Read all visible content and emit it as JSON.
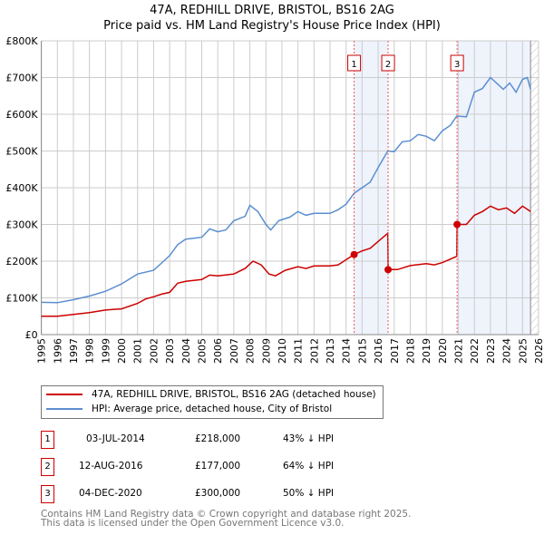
{
  "title": "47A, REDHILL DRIVE, BRISTOL, BS16 2AG",
  "subtitle": "Price paid vs. HM Land Registry's House Price Index (HPI)",
  "legend": {
    "property": "47A, REDHILL DRIVE, BRISTOL, BS16 2AG (detached house)",
    "hpi": "HPI: Average price, detached house, City of Bristol"
  },
  "transactions": [
    {
      "num": "1",
      "date": "03-JUL-2014",
      "price": "£218,000",
      "delta": "43% ↓ HPI"
    },
    {
      "num": "2",
      "date": "12-AUG-2016",
      "price": "£177,000",
      "delta": "64% ↓ HPI"
    },
    {
      "num": "3",
      "date": "04-DEC-2020",
      "price": "£300,000",
      "delta": "50% ↓ HPI"
    }
  ],
  "footer": {
    "line1": "Contains HM Land Registry data © Crown copyright and database right 2025.",
    "line2": "This data is licensed under the Open Government Licence v3.0."
  },
  "colors": {
    "property": "#cc0000",
    "hpi": "#5b8fd0",
    "shade": "#eef3fc"
  },
  "chart_data": {
    "type": "line",
    "xlim": [
      1995,
      2026
    ],
    "ylim": [
      0,
      800000
    ],
    "xticks": [
      "1995",
      "1996",
      "1997",
      "1998",
      "1999",
      "2000",
      "2001",
      "2002",
      "2003",
      "2004",
      "2005",
      "2006",
      "2007",
      "2008",
      "2009",
      "2010",
      "2011",
      "2012",
      "2013",
      "2014",
      "2015",
      "2016",
      "2017",
      "2018",
      "2019",
      "2020",
      "2021",
      "2022",
      "2023",
      "2024",
      "2025",
      "2026"
    ],
    "yticks": [
      {
        "v": 0,
        "label": "£0"
      },
      {
        "v": 100000,
        "label": "£100K"
      },
      {
        "v": 200000,
        "label": "£200K"
      },
      {
        "v": 300000,
        "label": "£300K"
      },
      {
        "v": 400000,
        "label": "£400K"
      },
      {
        "v": 500000,
        "label": "£500K"
      },
      {
        "v": 600000,
        "label": "£600K"
      },
      {
        "v": 700000,
        "label": "£700K"
      },
      {
        "v": 800000,
        "label": "£800K"
      }
    ],
    "shaded_ranges": [
      [
        2014.5,
        2016.62
      ],
      [
        2020.92,
        2025.5
      ]
    ],
    "data_end": 2025.5,
    "markers": [
      {
        "label": "1",
        "x": 2014.5,
        "y": 218000
      },
      {
        "label": "2",
        "x": 2016.62,
        "y": 177000
      },
      {
        "label": "3",
        "x": 2020.92,
        "y": 300000
      }
    ],
    "series": [
      {
        "name": "HPI",
        "points": [
          [
            1995,
            88
          ],
          [
            1996,
            87
          ],
          [
            1997,
            95
          ],
          [
            1998,
            105
          ],
          [
            1999,
            118
          ],
          [
            2000,
            138
          ],
          [
            2001,
            165
          ],
          [
            2002,
            175
          ],
          [
            2002.5,
            195
          ],
          [
            2003,
            215
          ],
          [
            2003.5,
            245
          ],
          [
            2004,
            260
          ],
          [
            2005,
            265
          ],
          [
            2005.5,
            288
          ],
          [
            2006,
            280
          ],
          [
            2006.5,
            285
          ],
          [
            2007,
            310
          ],
          [
            2007.7,
            322
          ],
          [
            2008,
            352
          ],
          [
            2008.5,
            335
          ],
          [
            2009,
            300
          ],
          [
            2009.3,
            285
          ],
          [
            2009.8,
            310
          ],
          [
            2010.5,
            320
          ],
          [
            2011,
            335
          ],
          [
            2011.5,
            325
          ],
          [
            2012,
            330
          ],
          [
            2013,
            330
          ],
          [
            2013.5,
            340
          ],
          [
            2014,
            355
          ],
          [
            2014.5,
            385
          ],
          [
            2015,
            400
          ],
          [
            2015.5,
            415
          ],
          [
            2016,
            455
          ],
          [
            2016.6,
            500
          ],
          [
            2017,
            498
          ],
          [
            2017.5,
            525
          ],
          [
            2018,
            528
          ],
          [
            2018.5,
            545
          ],
          [
            2019,
            540
          ],
          [
            2019.5,
            528
          ],
          [
            2020,
            555
          ],
          [
            2020.5,
            570
          ],
          [
            2020.9,
            595
          ],
          [
            2021.5,
            593
          ],
          [
            2022,
            660
          ],
          [
            2022.5,
            670
          ],
          [
            2023,
            700
          ],
          [
            2023.5,
            680
          ],
          [
            2023.8,
            668
          ],
          [
            2024.2,
            685
          ],
          [
            2024.6,
            660
          ],
          [
            2025,
            695
          ],
          [
            2025.3,
            700
          ],
          [
            2025.5,
            668
          ]
        ]
      },
      {
        "name": "Property",
        "points": [
          [
            1995,
            50
          ],
          [
            1996,
            50
          ],
          [
            1997,
            55
          ],
          [
            1998,
            60
          ],
          [
            1999,
            67
          ],
          [
            2000,
            70
          ],
          [
            2001,
            85
          ],
          [
            2001.5,
            97
          ],
          [
            2002,
            103
          ],
          [
            2002.5,
            110
          ],
          [
            2003,
            115
          ],
          [
            2003.5,
            140
          ],
          [
            2004,
            145
          ],
          [
            2005,
            150
          ],
          [
            2005.5,
            162
          ],
          [
            2006,
            160
          ],
          [
            2007,
            165
          ],
          [
            2007.7,
            180
          ],
          [
            2008.2,
            200
          ],
          [
            2008.7,
            190
          ],
          [
            2009.2,
            165
          ],
          [
            2009.6,
            160
          ],
          [
            2010.2,
            175
          ],
          [
            2011,
            185
          ],
          [
            2011.5,
            180
          ],
          [
            2012,
            187
          ],
          [
            2013,
            187
          ],
          [
            2013.5,
            190
          ],
          [
            2014.5,
            218
          ],
          [
            2015,
            228
          ],
          [
            2015.5,
            235
          ],
          [
            2016.6,
            276
          ],
          [
            2016.62,
            177
          ],
          [
            2017.2,
            177
          ],
          [
            2018,
            188
          ],
          [
            2019,
            193
          ],
          [
            2019.5,
            190
          ],
          [
            2020,
            196
          ],
          [
            2020.9,
            213
          ],
          [
            2020.92,
            300
          ],
          [
            2021.5,
            300
          ],
          [
            2022,
            325
          ],
          [
            2022.5,
            335
          ],
          [
            2023,
            350
          ],
          [
            2023.5,
            340
          ],
          [
            2024,
            345
          ],
          [
            2024.5,
            330
          ],
          [
            2025,
            350
          ],
          [
            2025.5,
            335
          ]
        ]
      }
    ],
    "units": "thousands GBP"
  }
}
